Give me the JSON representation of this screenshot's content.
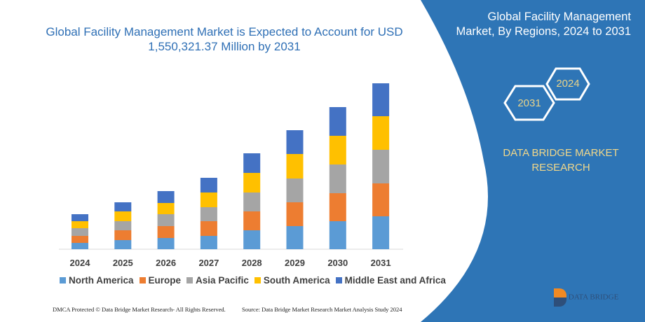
{
  "title": "Global Facility Management Market is Expected to Account for USD 1,550,321.37 Million by 2031",
  "side_panel": {
    "title": "Global Facility Management Market, By Regions, 2024 to 2031",
    "hex_left": "2031",
    "hex_right": "2024",
    "brand": "DATA BRIDGE MARKET RESEARCH",
    "logo_text": "DATA BRIDGE",
    "logo_sub": "MARKET RESEARCH",
    "color": "#2e75b6"
  },
  "footer": {
    "left": "DMCA Protected © Data Bridge Market Research- All Rights Reserved.",
    "right": "Source: Data Bridge Market Research Market Analysis Study 2024"
  },
  "chart_data": {
    "type": "bar",
    "stacked": true,
    "title": "Global Facility Management Market is Expected to Account for USD 1,550,321.37 Million by 2031",
    "categories": [
      "2024",
      "2025",
      "2026",
      "2027",
      "2028",
      "2029",
      "2030",
      "2031"
    ],
    "series": [
      {
        "name": "North America",
        "color": "#5b9bd5",
        "values": [
          9,
          13,
          16,
          19,
          27,
          33,
          40,
          47
        ]
      },
      {
        "name": "Europe",
        "color": "#ed7d31",
        "values": [
          10,
          14,
          17,
          21,
          27,
          34,
          40,
          47
        ]
      },
      {
        "name": "Asia Pacific",
        "color": "#a5a5a5",
        "values": [
          11,
          13,
          17,
          20,
          27,
          34,
          41,
          48
        ]
      },
      {
        "name": "South America",
        "color": "#ffc000",
        "values": [
          10,
          14,
          16,
          21,
          28,
          35,
          41,
          48
        ]
      },
      {
        "name": "Middle East and Africa",
        "color": "#4472c4",
        "values": [
          10,
          13,
          17,
          21,
          28,
          34,
          41,
          47
        ]
      }
    ],
    "y_axis_shown": false,
    "grid": false,
    "legend_position": "bottom"
  }
}
